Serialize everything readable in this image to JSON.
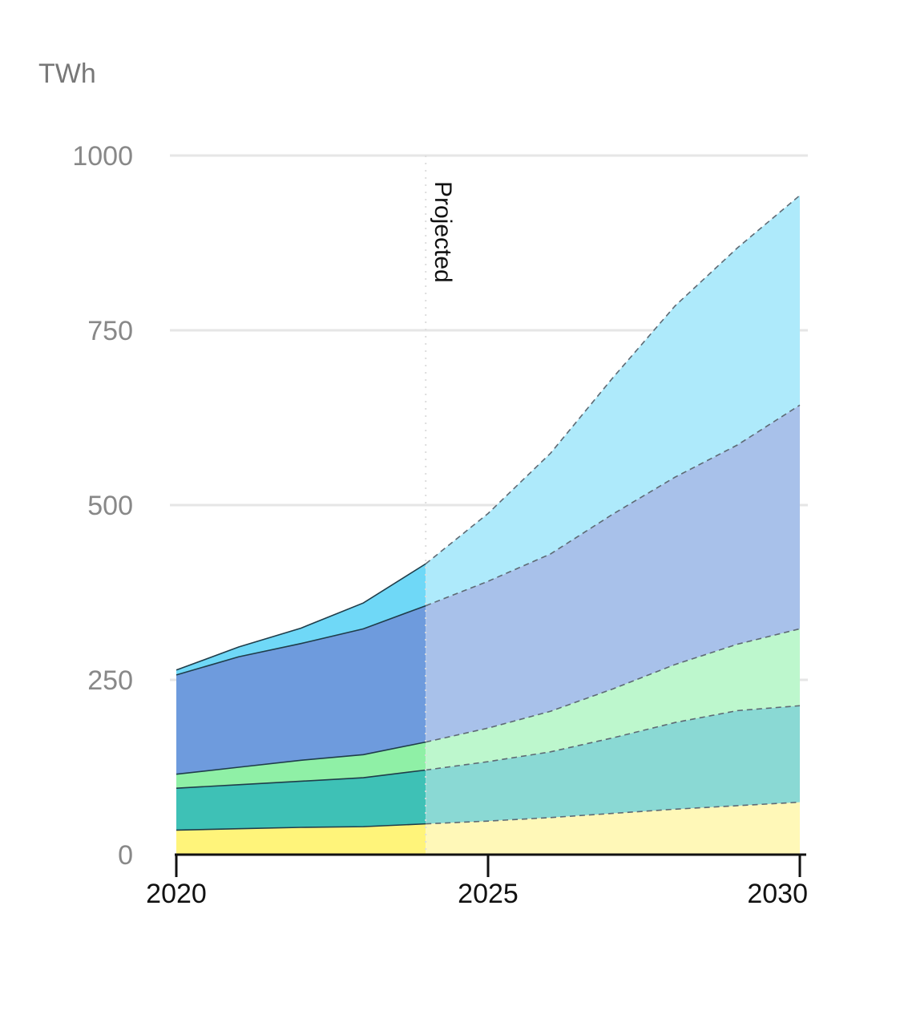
{
  "chart_data": {
    "type": "area",
    "stacked": true,
    "ylabel": "TWh",
    "xlabel": "",
    "title": "",
    "ylim": [
      0,
      1000
    ],
    "xlim": [
      2020,
      2030
    ],
    "yticks": [
      "0",
      "250",
      "500",
      "750",
      "1000"
    ],
    "xticks": [
      "2020",
      "2025",
      "2030"
    ],
    "grid": true,
    "projection_start": 2024,
    "projection_label": "Projected",
    "x": [
      2020,
      2021,
      2022,
      2023,
      2024,
      2025,
      2026,
      2027,
      2028,
      2029,
      2030
    ],
    "series": [
      {
        "color": "#fff47a",
        "projected_color": "#fff8b8",
        "values": [
          35,
          37,
          39,
          40,
          44,
          48,
          53,
          59,
          65,
          70,
          75
        ]
      },
      {
        "color": "#3ec1b6",
        "projected_color": "#8ad9d4",
        "values": [
          60,
          63,
          66,
          70,
          77,
          85,
          94,
          108,
          124,
          136,
          138
        ]
      },
      {
        "color": "#8ff0a6",
        "projected_color": "#bdf7cd",
        "values": [
          20,
          25,
          30,
          33,
          40,
          48,
          58,
          70,
          83,
          95,
          110
        ]
      },
      {
        "color": "#6e9bdd",
        "projected_color": "#a8c1ea",
        "values": [
          142,
          158,
          167,
          180,
          195,
          210,
          225,
          250,
          268,
          285,
          320
        ]
      },
      {
        "color": "#6fd8f7",
        "projected_color": "#aeeafb",
        "values": [
          7,
          14,
          22,
          37,
          60,
          97,
          144,
          195,
          245,
          282,
          300
        ]
      }
    ]
  }
}
